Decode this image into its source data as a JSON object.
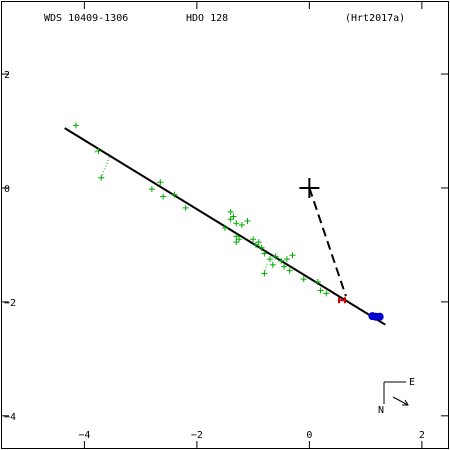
{
  "header": {
    "wds": "WDS 10409-1306",
    "name": "HDO 128",
    "ref": "(Hrt2017a)"
  },
  "compass": {
    "east": "E",
    "north": "N"
  },
  "colors": {
    "observations": "#00aa00",
    "residual": "#00aa00",
    "orbit": "#000000",
    "node_line": "#000000",
    "recent": "#cc0000",
    "prediction": "#0000cc"
  },
  "chart_data": {
    "type": "scatter",
    "title": "",
    "xlabel": "",
    "ylabel": "",
    "xlim": [
      -5.5,
      2.5
    ],
    "ylim": [
      -4.6,
      3.3
    ],
    "x_ticks": [
      -4,
      -2,
      0,
      2
    ],
    "x_tick_labels": [
      "−4",
      "−2",
      "0",
      "2"
    ],
    "y_ticks": [
      2,
      0,
      -2,
      -4
    ],
    "y_tick_labels": [
      "2",
      "0",
      "−2",
      "−4"
    ],
    "primary": {
      "x": 0,
      "y": 0
    },
    "orbit_line": {
      "x": [
        -4.35,
        1.35
      ],
      "y": [
        1.05,
        -2.4
      ]
    },
    "node_line": {
      "x": [
        0,
        0.65
      ],
      "y": [
        0,
        -1.9
      ]
    },
    "observations": {
      "x": [
        -4.15,
        -3.75,
        -3.7,
        -2.8,
        -2.65,
        -2.6,
        -2.4,
        -2.2,
        -1.4,
        -1.35,
        -1.4,
        -1.3,
        -1.2,
        -1.1,
        -1.5,
        -1.3,
        -1.3,
        -1.25,
        -1.0,
        -0.95,
        -0.9,
        -0.85,
        -0.8,
        -0.7,
        -0.65,
        -0.6,
        -0.5,
        -0.4,
        -0.3,
        -0.45,
        -0.35,
        -0.8,
        -0.1,
        0.15,
        0.2,
        0.3
      ],
      "y": [
        1.1,
        0.65,
        0.18,
        -0.02,
        0.1,
        -0.15,
        -0.12,
        -0.35,
        -0.42,
        -0.5,
        -0.55,
        -0.62,
        -0.65,
        -0.58,
        -0.7,
        -0.85,
        -0.95,
        -0.9,
        -0.9,
        -1.0,
        -0.95,
        -1.05,
        -1.15,
        -1.25,
        -1.35,
        -1.2,
        -1.28,
        -1.25,
        -1.18,
        -1.38,
        -1.45,
        -1.5,
        -1.6,
        -1.65,
        -1.8,
        -1.85
      ]
    },
    "residuals": [
      {
        "x": [
          -3.75,
          -3.85
        ],
        "y": [
          0.65,
          0.62
        ]
      },
      {
        "x": [
          -3.7,
          -3.55
        ],
        "y": [
          0.18,
          0.55
        ]
      },
      {
        "x": [
          -0.8,
          -0.75
        ],
        "y": [
          -1.5,
          -1.32
        ]
      }
    ],
    "recent": {
      "x": [
        0.58
      ],
      "y": [
        -1.97
      ]
    },
    "prediction": {
      "x": [
        1.12,
        1.18,
        1.25
      ],
      "y": [
        -2.25,
        -2.26,
        -2.26
      ]
    }
  }
}
